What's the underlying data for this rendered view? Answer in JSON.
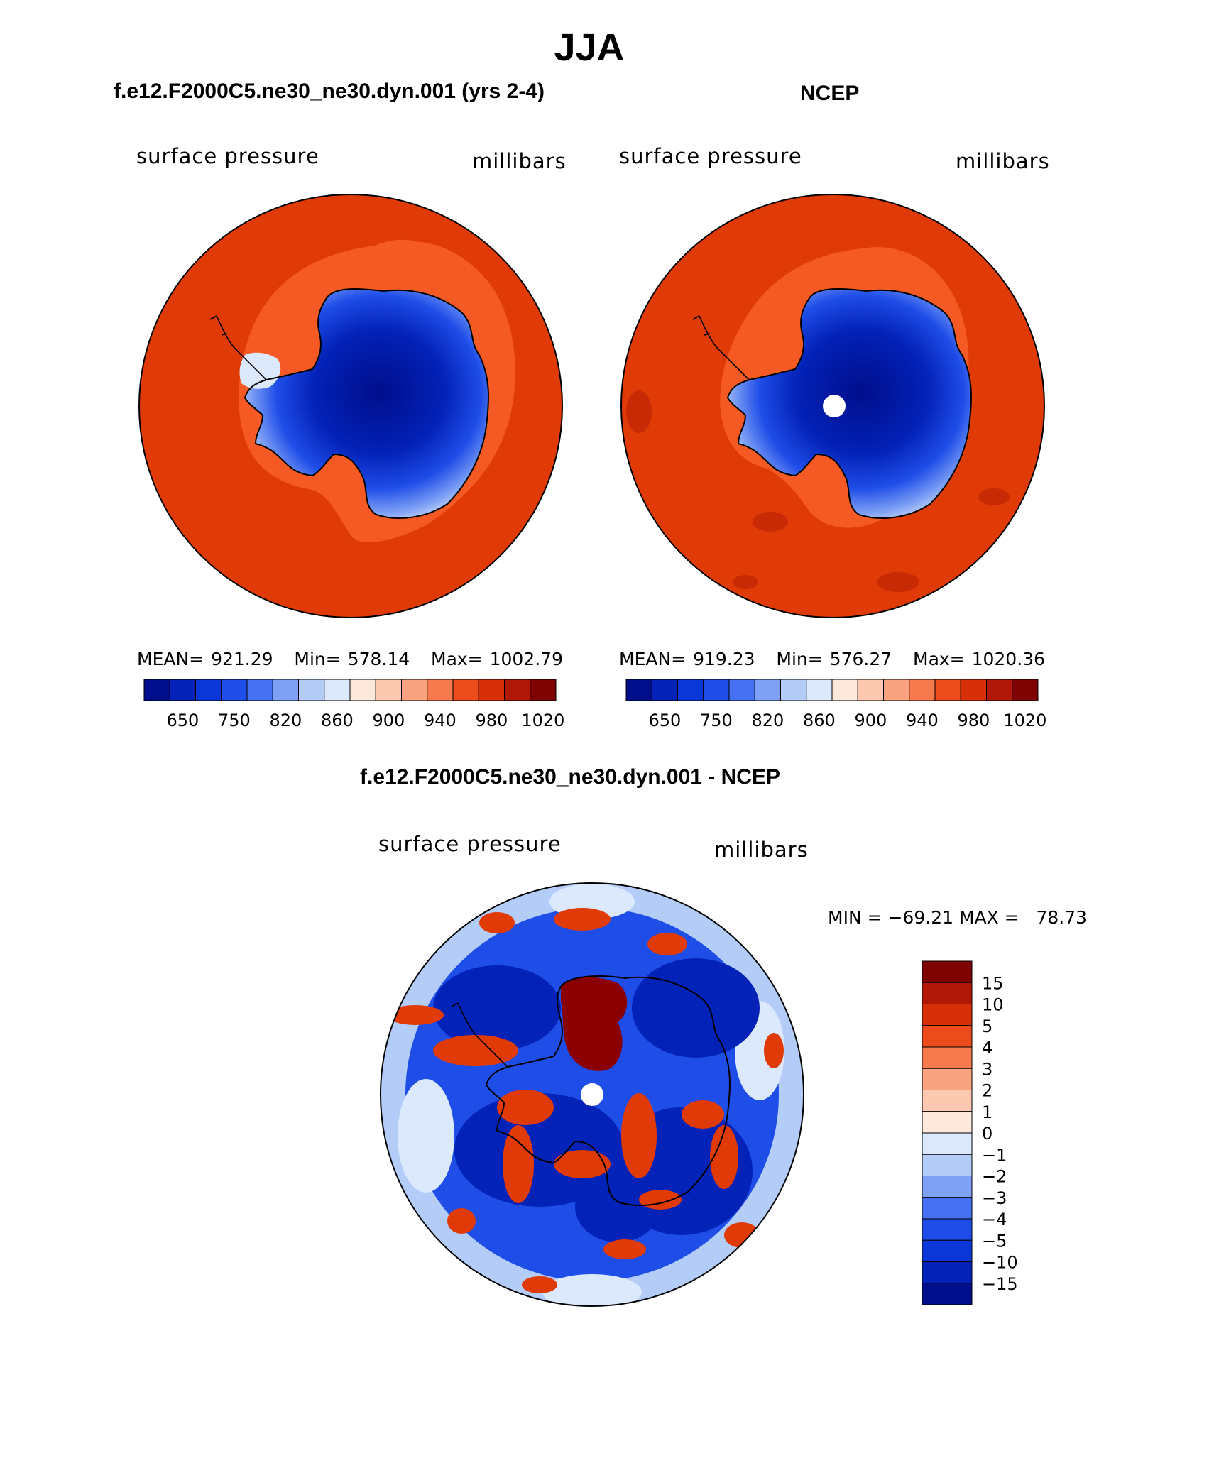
{
  "main_title": "JJA",
  "panels": [
    {
      "title": "f.e12.F2000C5.ne30_ne30.dyn.001 (yrs 2-4)",
      "variable": "surface pressure",
      "units": "millibars",
      "stats": {
        "mean_label": "MEAN=",
        "mean": "921.29",
        "min_label": "Min=",
        "min": "578.14",
        "max_label": "Max=",
        "max": "1002.79"
      }
    },
    {
      "title": "NCEP",
      "variable": "surface pressure",
      "units": "millibars",
      "stats": {
        "mean_label": "MEAN=",
        "mean": "919.23",
        "min_label": "Min=",
        "min": "576.27",
        "max_label": "Max=",
        "max": "1020.36"
      }
    },
    {
      "title": "f.e12.F2000C5.ne30_ne30.dyn.001 - NCEP",
      "variable": "surface pressure",
      "units": "millibars",
      "stats_text": "MIN = −69.21 MAX =   78.73"
    }
  ],
  "colorbar_abs": {
    "colors": [
      "#000e8c",
      "#0322b8",
      "#0c37d8",
      "#1f4de8",
      "#4670f2",
      "#7fa1f5",
      "#b3ccf8",
      "#dce8fb",
      "#fde9dc",
      "#fcc8b0",
      "#f9a381",
      "#f67a4e",
      "#ec4b1c",
      "#d73008",
      "#b11808",
      "#7e0404"
    ],
    "ticks": [
      "650",
      "750",
      "820",
      "860",
      "900",
      "940",
      "980",
      "1020"
    ]
  },
  "colorbar_diff": {
    "colors": [
      "#7e0404",
      "#b11808",
      "#d73008",
      "#ec4b1c",
      "#f67a4e",
      "#f9a381",
      "#fcc8b0",
      "#fde9dc",
      "#dce8fb",
      "#b3ccf8",
      "#7fa1f5",
      "#4670f2",
      "#1f4de8",
      "#0c37d8",
      "#0322b8",
      "#000e8c"
    ],
    "ticks": [
      "15",
      "10",
      "5",
      "4",
      "3",
      "2",
      "1",
      "0",
      "−1",
      "−2",
      "−3",
      "−4",
      "−5",
      "−10",
      "−15"
    ]
  },
  "chart_data": [
    {
      "type": "heatmap",
      "title": "f.e12.F2000C5.ne30_ne30.dyn.001 (yrs 2-4)",
      "field": "surface pressure",
      "units": "millibars",
      "mean": 921.29,
      "min": 578.14,
      "max": 1002.79,
      "levels": [
        650,
        750,
        820,
        860,
        900,
        940,
        980,
        1020
      ]
    },
    {
      "type": "heatmap",
      "title": "NCEP",
      "field": "surface pressure",
      "units": "millibars",
      "mean": 919.23,
      "min": 576.27,
      "max": 1020.36,
      "levels": [
        650,
        750,
        820,
        860,
        900,
        940,
        980,
        1020
      ]
    },
    {
      "type": "heatmap",
      "title": "f.e12.F2000C5.ne30_ne30.dyn.001 - NCEP",
      "field": "surface pressure",
      "units": "millibars",
      "min": -69.21,
      "max": 78.73,
      "levels": [
        -15,
        -10,
        -5,
        -4,
        -3,
        -2,
        -1,
        0,
        1,
        2,
        3,
        4,
        5,
        10,
        15
      ]
    }
  ]
}
